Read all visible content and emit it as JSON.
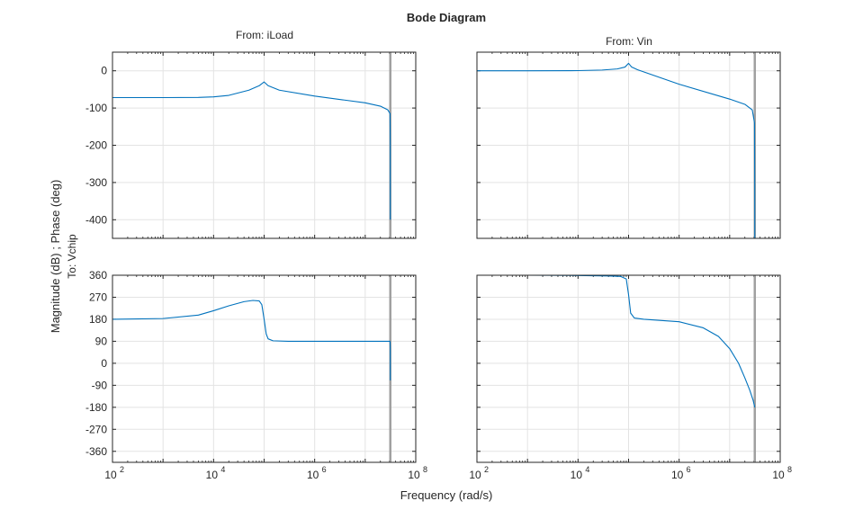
{
  "figure": {
    "title": "Bode Diagram",
    "xlabel": "Frequency (rad/s)",
    "ylabel": "Magnitude (dB) ; Phase (deg)",
    "output_label": "To: Vchip",
    "input_labels": [
      "From: iLoad",
      "From: Vin"
    ]
  },
  "colors": {
    "series": "#0072bd",
    "grid": "#e3e3e3",
    "axes": "#262626",
    "nyquist_line": "#a0a0a0"
  },
  "chart_data": {
    "type": "line",
    "title": "Bode Diagram",
    "xlabel": "Frequency (rad/s)",
    "ylabel": "Magnitude (dB) ; Phase (deg)",
    "xscale": "log",
    "grid": true,
    "xlim": [
      100,
      100000000
    ],
    "x_ticks": [
      100,
      10000,
      1000000,
      100000000
    ],
    "x_tick_labels": [
      {
        "base": "10",
        "exp": "2"
      },
      {
        "base": "10",
        "exp": "4"
      },
      {
        "base": "10",
        "exp": "6"
      },
      {
        "base": "10",
        "exp": "8"
      }
    ],
    "nyquist_frequency": 31400000,
    "magnitude_ylim": [
      -450,
      50
    ],
    "magnitude_ticks": [
      0,
      -100,
      -200,
      -300,
      -400
    ],
    "phase_ylim": [
      -405,
      360
    ],
    "phase_ticks": [
      360,
      270,
      180,
      90,
      0,
      -90,
      -180,
      -270,
      -360
    ],
    "panels": [
      {
        "input": "From: iLoad",
        "kind": "magnitude",
        "x": [
          100,
          1000,
          5000,
          10000,
          20000,
          50000,
          80000,
          100000,
          120000,
          200000,
          1000000,
          10000000,
          20000000,
          28000000,
          31000000,
          31300000,
          31400000
        ],
        "y": [
          -72,
          -72,
          -71.5,
          -70,
          -66,
          -52,
          -40,
          -30,
          -40,
          -52,
          -68,
          -86,
          -95,
          -105,
          -115,
          -200,
          -400
        ]
      },
      {
        "input": "From: Vin",
        "kind": "magnitude",
        "x": [
          100,
          1000,
          10000,
          30000,
          60000,
          85000,
          100000,
          115000,
          150000,
          1000000,
          10000000,
          20000000,
          28000000,
          31000000,
          31300000,
          31400000
        ],
        "y": [
          0,
          0,
          0.5,
          2,
          5,
          10,
          20,
          10,
          3,
          -36,
          -76,
          -90,
          -105,
          -140,
          -300,
          -450
        ]
      },
      {
        "input": "From: iLoad",
        "kind": "phase",
        "x": [
          100,
          1000,
          5000,
          10000,
          20000,
          40000,
          60000,
          80000,
          90000,
          100000,
          110000,
          120000,
          150000,
          300000,
          1000000,
          10000000,
          31000000,
          31300000,
          31400000
        ],
        "y": [
          180,
          183,
          197,
          215,
          235,
          252,
          257,
          255,
          240,
          180,
          120,
          100,
          92,
          90,
          90,
          90,
          90,
          60,
          -70
        ]
      },
      {
        "input": "From: Vin",
        "kind": "phase",
        "x": [
          100,
          1000,
          10000,
          40000,
          70000,
          90000,
          100000,
          110000,
          130000,
          200000,
          1000000,
          3000000,
          6000000,
          10000000,
          15000000,
          20000000,
          25000000,
          29000000,
          31400000
        ],
        "y": [
          360,
          360,
          359,
          357,
          355,
          345,
          280,
          205,
          185,
          180,
          170,
          145,
          110,
          60,
          0,
          -60,
          -110,
          -150,
          -180
        ]
      }
    ],
    "nyquist_tail_y": [
      -405
    ]
  }
}
